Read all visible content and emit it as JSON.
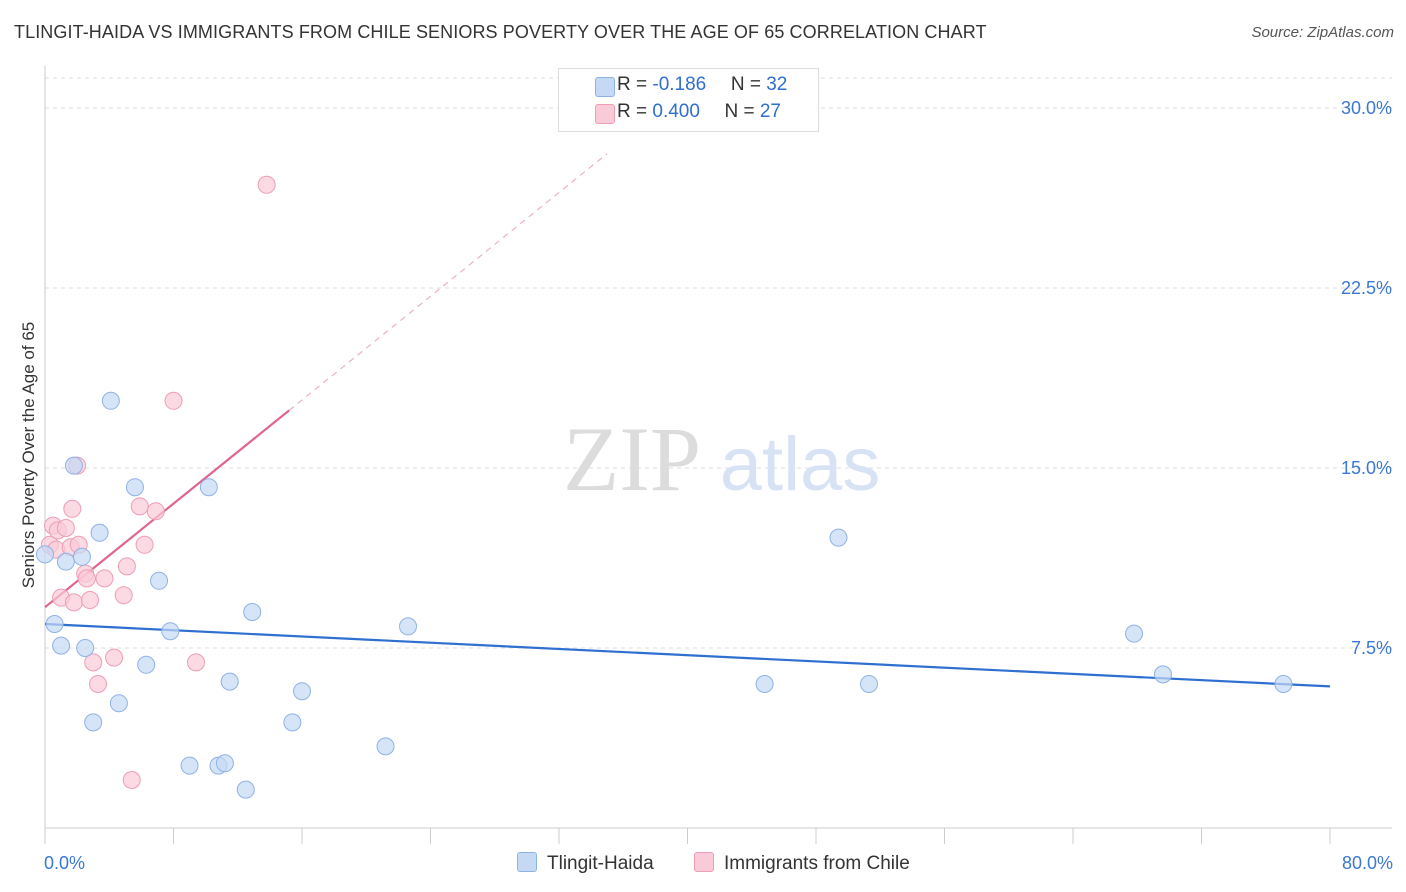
{
  "title": "TLINGIT-HAIDA VS IMMIGRANTS FROM CHILE SENIORS POVERTY OVER THE AGE OF 65 CORRELATION CHART",
  "source": "Source: ZipAtlas.com",
  "watermark": {
    "zip": "ZIP",
    "atlas": "atlas"
  },
  "legend": {
    "series1": {
      "r_label": "R = ",
      "r_value": "-0.186",
      "n_label": "N = ",
      "n_value": "32"
    },
    "series2": {
      "r_label": "R = ",
      "r_value": "0.400",
      "n_label": "N = ",
      "n_value": "27"
    }
  },
  "colors": {
    "blue_fill": "#c5d9f5",
    "blue_stroke": "#8fb2e6",
    "blue_line": "#2f6fd0",
    "pink_fill": "#f9cad7",
    "pink_stroke": "#ee9db5",
    "pink_line": "#e0648c",
    "tick_label": "#3a78d4",
    "grid": "#dddddd"
  },
  "chart_data": {
    "type": "scatter",
    "title": "TLINGIT-HAIDA VS IMMIGRANTS FROM CHILE SENIORS POVERTY OVER THE AGE OF 65 CORRELATION CHART",
    "xlabel": "",
    "ylabel": "Seniors Poverty Over the Age of 65",
    "xlim": [
      0,
      80
    ],
    "ylim": [
      0,
      31.5
    ],
    "x_tick_labels": [
      "0.0%",
      "80.0%"
    ],
    "y_ticks": [
      7.5,
      15.0,
      22.5,
      30.0
    ],
    "y_tick_labels": [
      "7.5%",
      "15.0%",
      "22.5%",
      "30.0%"
    ],
    "series": [
      {
        "name": "Tlingit-Haida",
        "points": [
          [
            0.0,
            11.4
          ],
          [
            0.6,
            8.5
          ],
          [
            1.0,
            7.6
          ],
          [
            1.3,
            11.1
          ],
          [
            1.8,
            15.1
          ],
          [
            2.3,
            11.3
          ],
          [
            2.5,
            7.5
          ],
          [
            3.0,
            4.4
          ],
          [
            3.4,
            12.3
          ],
          [
            4.1,
            17.8
          ],
          [
            4.6,
            5.2
          ],
          [
            5.6,
            14.2
          ],
          [
            6.3,
            6.8
          ],
          [
            7.1,
            10.3
          ],
          [
            7.8,
            8.2
          ],
          [
            9.0,
            2.6
          ],
          [
            10.2,
            14.2
          ],
          [
            10.8,
            2.6
          ],
          [
            11.2,
            2.7
          ],
          [
            11.5,
            6.1
          ],
          [
            12.5,
            1.6
          ],
          [
            12.9,
            9.0
          ],
          [
            15.4,
            4.4
          ],
          [
            16.0,
            5.7
          ],
          [
            21.2,
            3.4
          ],
          [
            22.6,
            8.4
          ],
          [
            44.8,
            6.0
          ],
          [
            49.4,
            12.1
          ],
          [
            51.3,
            6.0
          ],
          [
            67.8,
            8.1
          ],
          [
            69.6,
            6.4
          ],
          [
            77.1,
            6.0
          ]
        ],
        "trend": {
          "x0": 0.0,
          "y0": 8.5,
          "x1": 80.0,
          "y1": 5.9
        }
      },
      {
        "name": "Immigrants from Chile",
        "points": [
          [
            0.3,
            11.8
          ],
          [
            0.5,
            12.6
          ],
          [
            0.7,
            11.6
          ],
          [
            0.8,
            12.4
          ],
          [
            1.0,
            9.6
          ],
          [
            1.3,
            12.5
          ],
          [
            1.6,
            11.7
          ],
          [
            1.7,
            13.3
          ],
          [
            1.8,
            9.4
          ],
          [
            2.0,
            15.1
          ],
          [
            2.1,
            11.8
          ],
          [
            2.5,
            10.6
          ],
          [
            2.6,
            10.4
          ],
          [
            2.8,
            9.5
          ],
          [
            3.0,
            6.9
          ],
          [
            3.3,
            6.0
          ],
          [
            3.7,
            10.4
          ],
          [
            4.3,
            7.1
          ],
          [
            4.9,
            9.7
          ],
          [
            5.1,
            10.9
          ],
          [
            5.4,
            2.0
          ],
          [
            5.9,
            13.4
          ],
          [
            6.2,
            11.8
          ],
          [
            6.9,
            13.2
          ],
          [
            8.0,
            17.8
          ],
          [
            9.4,
            6.9
          ],
          [
            13.8,
            26.8
          ]
        ],
        "trend": {
          "x0": 0.0,
          "y0": 9.2,
          "x1": 15.2,
          "y1": 17.4
        },
        "trend_extension": {
          "x0": 15.2,
          "y0": 17.4,
          "x1": 35.0,
          "y1": 28.1
        }
      }
    ]
  },
  "bottom_legend": [
    "Tlingit-Haida",
    "Immigrants from Chile"
  ]
}
